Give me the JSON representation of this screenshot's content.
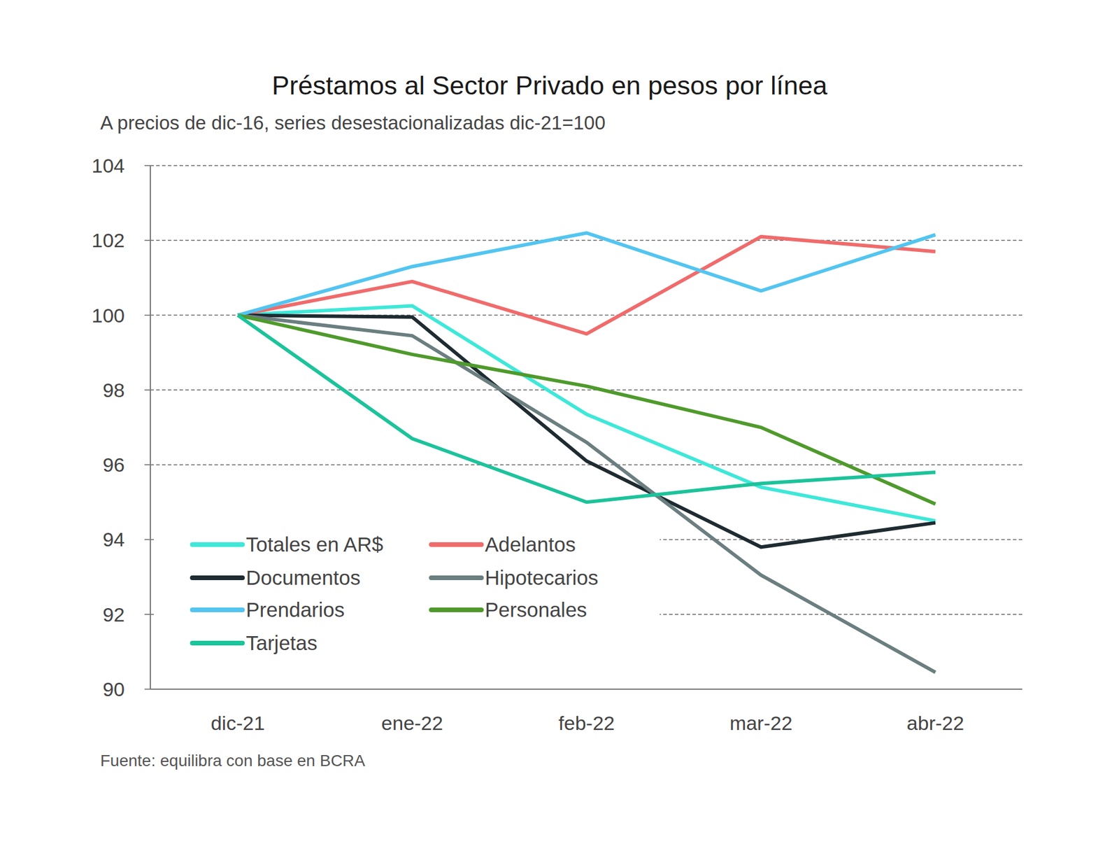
{
  "chart_data": {
    "type": "line",
    "title": "Préstamos al Sector Privado en pesos por línea",
    "subtitle": "A precios de dic-16, series desestacionalizadas dic-21=100",
    "source": "Fuente: equilibra con base en BCRA",
    "categories": [
      "dic-21",
      "ene-22",
      "feb-22",
      "mar-22",
      "abr-22"
    ],
    "series": [
      {
        "name": "Totales en AR$",
        "color": "#3ee8d8",
        "values": [
          100,
          100.25,
          97.35,
          95.4,
          94.5
        ]
      },
      {
        "name": "Adelantos",
        "color": "#f06b6b",
        "values": [
          100,
          100.9,
          99.5,
          102.1,
          101.7
        ]
      },
      {
        "name": "Documentos",
        "color": "#1e2b31",
        "values": [
          100,
          99.95,
          96.1,
          93.8,
          94.45
        ]
      },
      {
        "name": "Hipotecarios",
        "color": "#6b7e80",
        "values": [
          100,
          99.45,
          96.6,
          93.05,
          90.45
        ]
      },
      {
        "name": "Prendarios",
        "color": "#52c5f0",
        "values": [
          100,
          101.3,
          102.2,
          100.65,
          102.15
        ]
      },
      {
        "name": "Personales",
        "color": "#4f9a2c",
        "values": [
          100,
          98.95,
          98.1,
          97.0,
          94.95
        ]
      },
      {
        "name": "Tarjetas",
        "color": "#1cc39b",
        "values": [
          100,
          96.7,
          95.0,
          95.5,
          95.8
        ]
      }
    ],
    "ylim": [
      90,
      104
    ],
    "yticks": [
      90,
      92,
      94,
      96,
      98,
      100,
      102,
      104
    ],
    "grid": true,
    "legend": "lower left"
  }
}
